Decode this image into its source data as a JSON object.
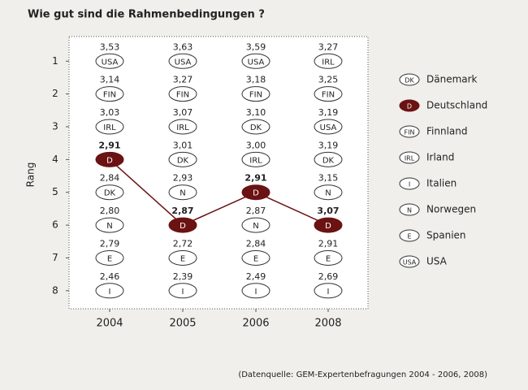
{
  "chart_data": {
    "type": "rank",
    "title": "Wie gut sind die Rahmenbedingungen ?",
    "ylabel": "Rang",
    "source": "(Datenquelle: GEM-Expertenbefragungen 2004 - 2006, 2008)",
    "categories": [
      "2004",
      "2005",
      "2006",
      "2008"
    ],
    "ylim": [
      0.25,
      8.55
    ],
    "y_inverted": true,
    "yticks": [
      1,
      2,
      3,
      4,
      5,
      6,
      7,
      8
    ],
    "highlight": "D",
    "highlight_color": "#6b1212",
    "columns": [
      {
        "codes": [
          "USA",
          "FIN",
          "IRL",
          "D",
          "DK",
          "N",
          "E",
          "I"
        ],
        "values": [
          3.53,
          3.14,
          3.03,
          2.91,
          2.84,
          2.8,
          2.79,
          2.46
        ],
        "value_labels": [
          "3,53",
          "3,14",
          "3,03",
          "2,91",
          "2,84",
          "2,80",
          "2,79",
          "2,46"
        ]
      },
      {
        "codes": [
          "USA",
          "FIN",
          "IRL",
          "DK",
          "N",
          "D",
          "E",
          "I"
        ],
        "values": [
          3.63,
          3.27,
          3.07,
          3.01,
          2.93,
          2.87,
          2.72,
          2.39
        ],
        "value_labels": [
          "3,63",
          "3,27",
          "3,07",
          "3,01",
          "2,93",
          "2,87",
          "2,72",
          "2,39"
        ]
      },
      {
        "codes": [
          "USA",
          "FIN",
          "DK",
          "IRL",
          "D",
          "N",
          "E",
          "I"
        ],
        "values": [
          3.59,
          3.18,
          3.1,
          3.0,
          2.91,
          2.87,
          2.84,
          2.49
        ],
        "value_labels": [
          "3,59",
          "3,18",
          "3,10",
          "3,00",
          "2,91",
          "2,87",
          "2,84",
          "2,49"
        ]
      },
      {
        "codes": [
          "IRL",
          "FIN",
          "USA",
          "DK",
          "N",
          "D",
          "E",
          "I"
        ],
        "values": [
          3.27,
          3.25,
          3.19,
          3.19,
          3.15,
          3.07,
          2.91,
          2.69
        ],
        "value_labels": [
          "3,27",
          "3,25",
          "3,19",
          "3,19",
          "3,15",
          "3,07",
          "2,91",
          "2,69"
        ]
      }
    ],
    "legend": [
      {
        "code": "DK",
        "name": "Dänemark"
      },
      {
        "code": "D",
        "name": "Deutschland"
      },
      {
        "code": "FIN",
        "name": "Finnland"
      },
      {
        "code": "IRL",
        "name": "Irland"
      },
      {
        "code": "I",
        "name": "Italien"
      },
      {
        "code": "N",
        "name": "Norwegen"
      },
      {
        "code": "E",
        "name": "Spanien"
      },
      {
        "code": "USA",
        "name": "USA"
      }
    ]
  }
}
